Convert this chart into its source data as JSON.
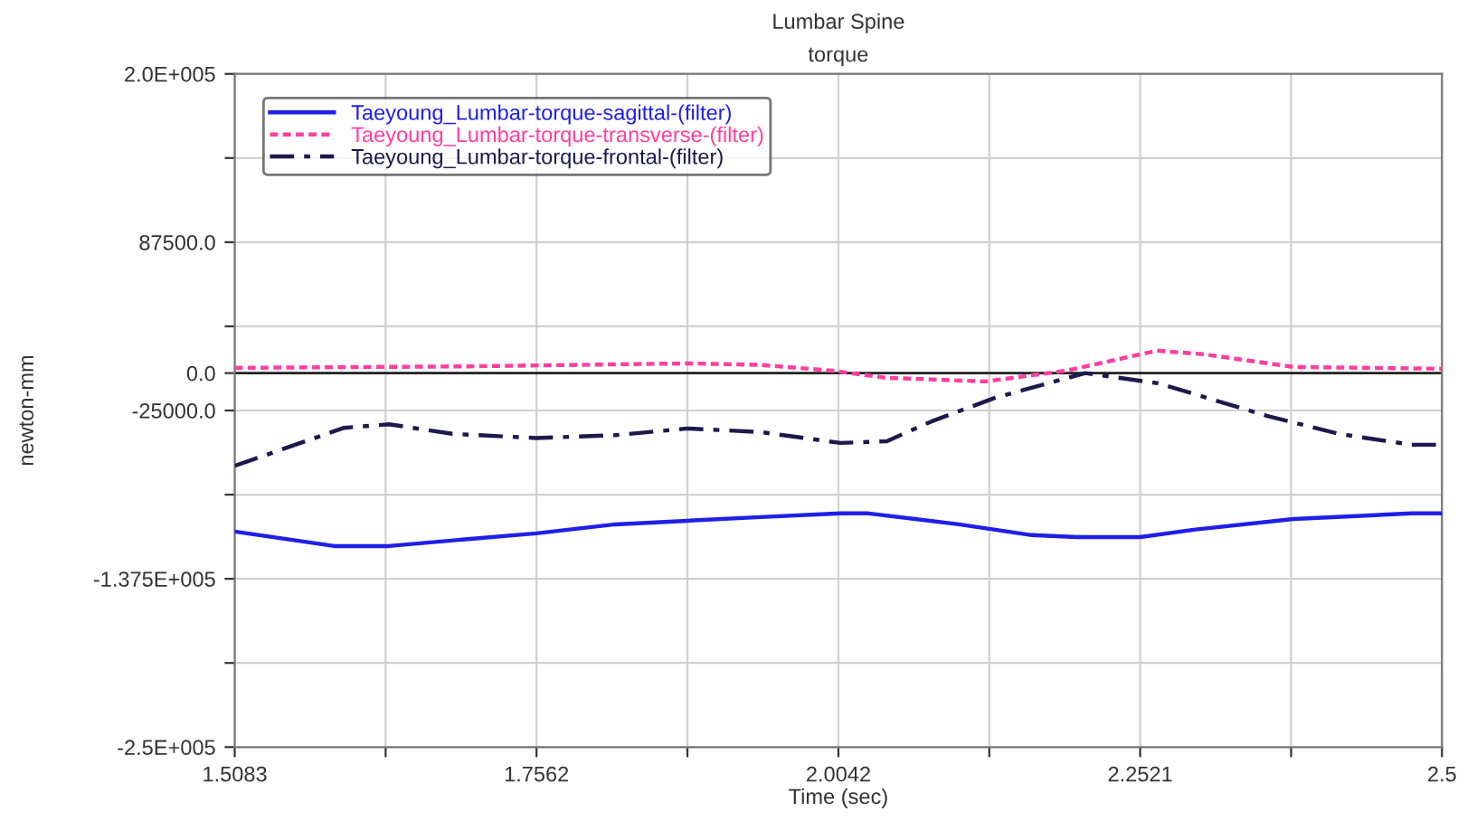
{
  "chart_data": {
    "type": "line",
    "title": "Lumbar Spine",
    "subtitle": "torque",
    "xlabel": "Time (sec)",
    "ylabel": "newton-mm",
    "xlim": [
      1.5083,
      2.5
    ],
    "xticks": [
      1.5083,
      {
        "value": 1.63225,
        "label": null
      },
      1.7562,
      {
        "value": 1.8802,
        "label": null
      },
      2.0042,
      {
        "value": 2.12815,
        "label": null
      },
      2.2521,
      {
        "value": 2.37605,
        "label": null
      },
      2.5
    ],
    "ylim": [
      -250000,
      200000
    ],
    "yticks": [
      {
        "value": 200000,
        "label": "2.0E+005"
      },
      {
        "value": 143750,
        "label": null
      },
      {
        "value": 87500,
        "label": "87500.0"
      },
      {
        "value": 31250,
        "label": null
      },
      {
        "value": 0,
        "label": "0.0"
      },
      {
        "value": -25000,
        "label": "-25000.0"
      },
      {
        "value": -81250,
        "label": null
      },
      {
        "value": -137500,
        "label": "-1.375E+005"
      },
      {
        "value": -193750,
        "label": null
      },
      {
        "value": -250000,
        "label": "-2.5E+005"
      }
    ],
    "ref_lines": [
      {
        "axis": "y",
        "value": 0,
        "label": null,
        "color": "#222222"
      }
    ],
    "grid": true,
    "legend": "top left",
    "series": [
      {
        "name": "Taeyoung_Lumbar-torque-sagittal-(filter)",
        "color": "#1f1fe8",
        "line_style": "solid",
        "x": [
          1.5083,
          1.59,
          1.635,
          1.702,
          1.756,
          1.821,
          1.88,
          1.94,
          2.006,
          2.029,
          2.103,
          2.163,
          2.2,
          2.252,
          2.296,
          2.378,
          2.475,
          2.5
        ],
        "values": [
          -105900,
          -115600,
          -115600,
          -110800,
          -107100,
          -101100,
          -98700,
          -96250,
          -93800,
          -93800,
          -101100,
          -108300,
          -109600,
          -109600,
          -104700,
          -97500,
          -93800,
          -93800
        ]
      },
      {
        "name": "Taeyoung_Lumbar-torque-transverse-(filter)",
        "color": "#ff3fa0",
        "line_style": "dotted",
        "x": [
          1.5083,
          1.7,
          1.88,
          1.94,
          1.999,
          2.043,
          2.125,
          2.192,
          2.266,
          2.304,
          2.378,
          2.5
        ],
        "values": [
          3500,
          4500,
          6500,
          5500,
          1600,
          -3100,
          -5600,
          1700,
          15000,
          12600,
          4100,
          2900
        ]
      },
      {
        "name": "Taeyoung_Lumbar-torque-frontal-(filter)",
        "color": "#1a1a4d",
        "line_style": "dashdot",
        "x": [
          1.5083,
          1.598,
          1.635,
          1.687,
          1.756,
          1.821,
          1.88,
          1.94,
          2.006,
          2.044,
          2.081,
          2.133,
          2.207,
          2.267,
          2.356,
          2.415,
          2.475,
          2.5
        ],
        "values": [
          -62000,
          -36600,
          -34200,
          -40600,
          -43400,
          -41500,
          -37000,
          -39400,
          -46700,
          -45500,
          -32200,
          -16500,
          0,
          -6800,
          -28500,
          -40600,
          -47900,
          -47900
        ]
      }
    ]
  }
}
